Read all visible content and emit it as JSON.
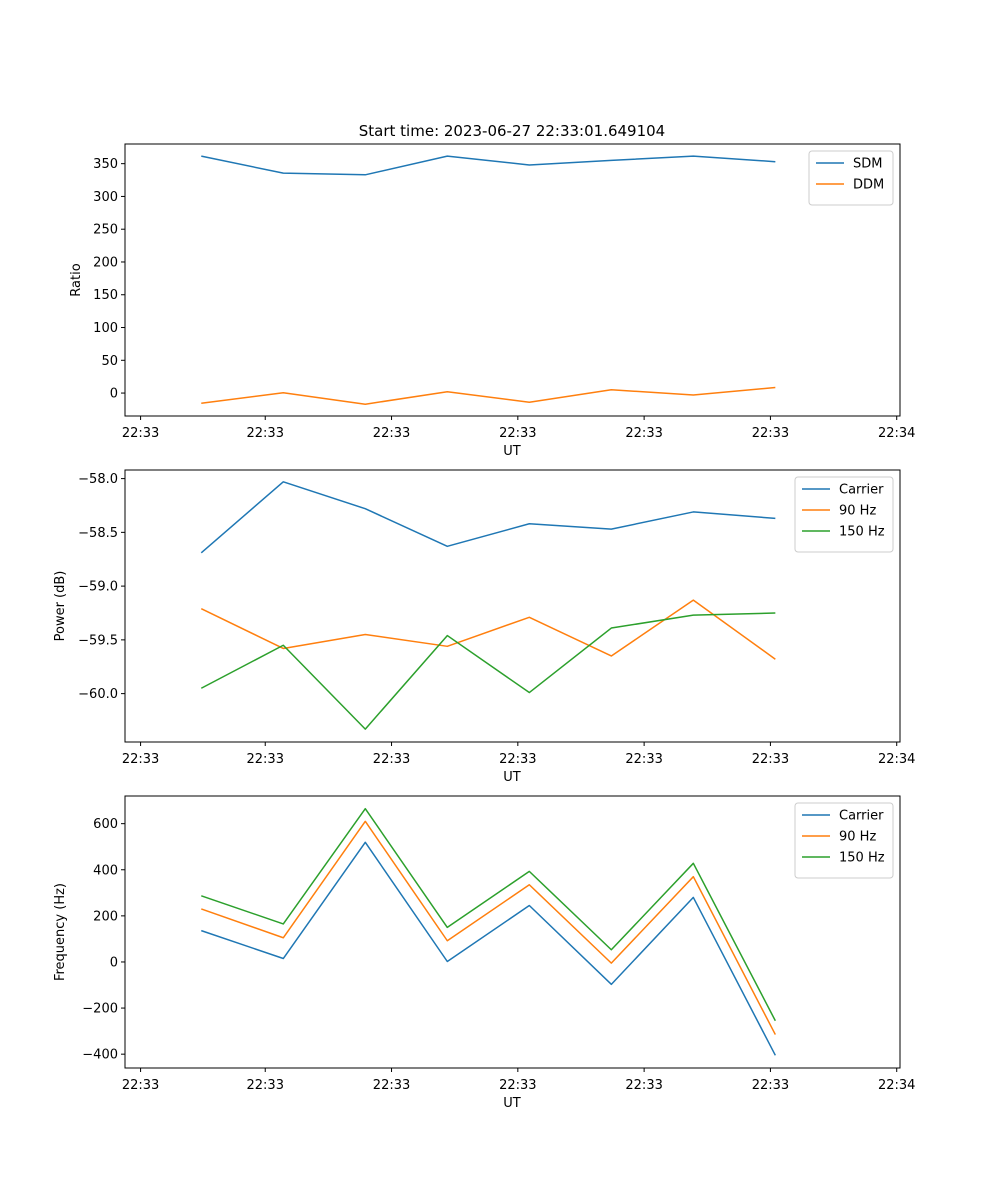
{
  "figure": {
    "title": "Start time: 2023-06-27 22:33:01.649104"
  },
  "colors": {
    "blue": "#1f77b4",
    "orange": "#ff7f0e",
    "green": "#2ca02c"
  },
  "chart_data": [
    {
      "type": "line",
      "xlabel": "UT",
      "ylabel": "Ratio",
      "x_tick_labels": [
        "22:33",
        "22:33",
        "22:33",
        "22:33",
        "22:33",
        "22:33",
        "22:34"
      ],
      "ylim": [
        -35,
        380
      ],
      "yticks": [
        0,
        50,
        100,
        150,
        200,
        250,
        300,
        350
      ],
      "y_tick_labels": [
        "0",
        "50",
        "100",
        "150",
        "200",
        "250",
        "300",
        "350"
      ],
      "legend_position": "top-right",
      "series": [
        {
          "name": "SDM",
          "color": "#1f77b4",
          "values": [
            361.5,
            335.5,
            333.0,
            361.5,
            348.0,
            355.0,
            361.5,
            353.0
          ]
        },
        {
          "name": "DDM",
          "color": "#ff7f0e",
          "values": [
            -15.5,
            0.5,
            -17.0,
            2.0,
            -14.0,
            5.0,
            -3.0,
            8.5
          ]
        }
      ]
    },
    {
      "type": "line",
      "xlabel": "UT",
      "ylabel": "Power (dB)",
      "x_tick_labels": [
        "22:33",
        "22:33",
        "22:33",
        "22:33",
        "22:33",
        "22:33",
        "22:34"
      ],
      "ylim": [
        -60.45,
        -57.92
      ],
      "yticks": [
        -60.0,
        -59.5,
        -59.0,
        -58.5,
        -58.0
      ],
      "y_tick_labels": [
        "−60.0",
        "−59.5",
        "−59.0",
        "−58.5",
        "−58.0"
      ],
      "legend_position": "top-right",
      "series": [
        {
          "name": "Carrier",
          "color": "#1f77b4",
          "values": [
            -58.69,
            -58.03,
            -58.28,
            -58.63,
            -58.42,
            -58.47,
            -58.31,
            -58.37
          ]
        },
        {
          "name": "90 Hz",
          "color": "#ff7f0e",
          "values": [
            -59.21,
            -59.58,
            -59.45,
            -59.56,
            -59.29,
            -59.65,
            -59.13,
            -59.68
          ]
        },
        {
          "name": "150 Hz",
          "color": "#2ca02c",
          "values": [
            -59.95,
            -59.55,
            -60.33,
            -59.46,
            -59.99,
            -59.39,
            -59.27,
            -59.25
          ]
        }
      ]
    },
    {
      "type": "line",
      "xlabel": "UT",
      "ylabel": "Frequency (Hz)",
      "x_tick_labels": [
        "22:33",
        "22:33",
        "22:33",
        "22:33",
        "22:33",
        "22:33",
        "22:34"
      ],
      "ylim": [
        -460,
        720
      ],
      "yticks": [
        -400,
        -200,
        0,
        200,
        400,
        600
      ],
      "y_tick_labels": [
        "−400",
        "−200",
        "0",
        "200",
        "400",
        "600"
      ],
      "legend_position": "top-right",
      "series": [
        {
          "name": "Carrier",
          "color": "#1f77b4",
          "values": [
            136,
            15,
            519,
            2,
            245,
            -97,
            280,
            -405
          ]
        },
        {
          "name": "90 Hz",
          "color": "#ff7f0e",
          "values": [
            230,
            105,
            610,
            92,
            335,
            -5,
            370,
            -315
          ]
        },
        {
          "name": "150 Hz",
          "color": "#2ca02c",
          "values": [
            287,
            165,
            665,
            150,
            393,
            53,
            428,
            -255
          ]
        }
      ]
    }
  ]
}
